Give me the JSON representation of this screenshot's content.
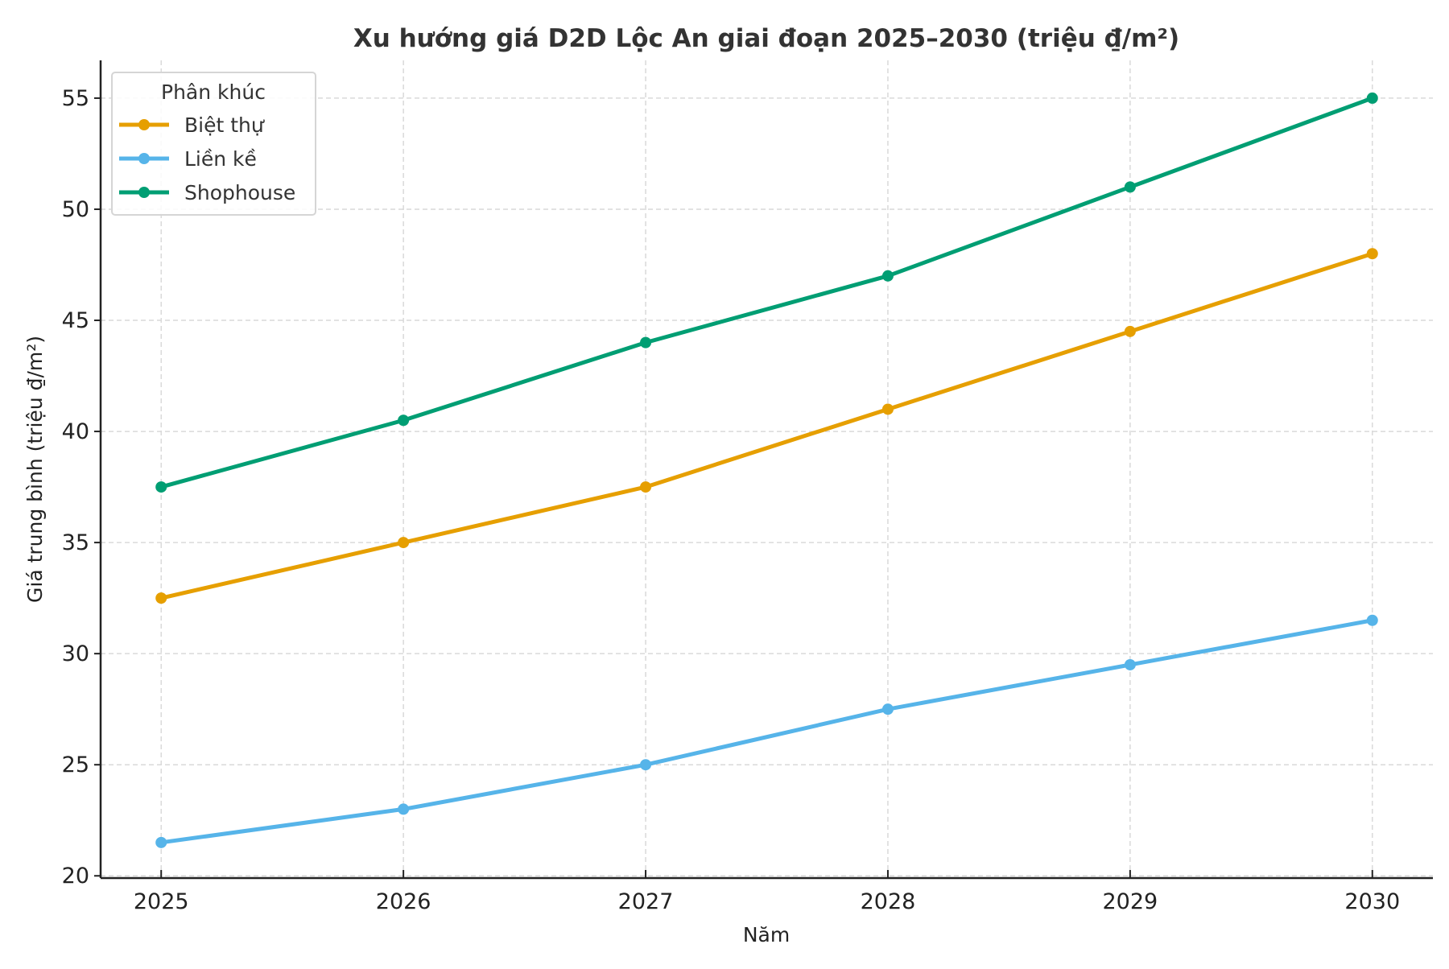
{
  "chart_data": {
    "type": "line",
    "title": "Xu hướng giá D2D Lộc An giai đoạn 2025–2030 (triệu đ̱/m²)",
    "xlabel": "Năm",
    "ylabel": "Giá trung bình (triệu đ̱/m²)",
    "x": [
      2025,
      2026,
      2027,
      2028,
      2029,
      2030
    ],
    "x_tick_labels": [
      "2025",
      "2026",
      "2027",
      "2028",
      "2029",
      "2030"
    ],
    "y_ticks": [
      20,
      25,
      30,
      35,
      40,
      45,
      50,
      55
    ],
    "y_tick_labels": [
      "20",
      "25",
      "30",
      "35",
      "40",
      "45",
      "50",
      "55"
    ],
    "ylim": [
      19.9,
      56.7
    ],
    "xlim": [
      2024.75,
      2030.25
    ],
    "grid": true,
    "legend_title": "Phân khúc",
    "legend_position": "top-left",
    "series": [
      {
        "name": "Biệt thự",
        "color": "#E69F00",
        "values": [
          32.5,
          35,
          37.5,
          41,
          44.5,
          48
        ]
      },
      {
        "name": "Liền kề",
        "color": "#56B4E9",
        "values": [
          21.5,
          23,
          25,
          27.5,
          29.5,
          31.5
        ]
      },
      {
        "name": "Shophouse",
        "color": "#009E73",
        "values": [
          37.5,
          40.5,
          44,
          47,
          51,
          55
        ]
      }
    ]
  }
}
